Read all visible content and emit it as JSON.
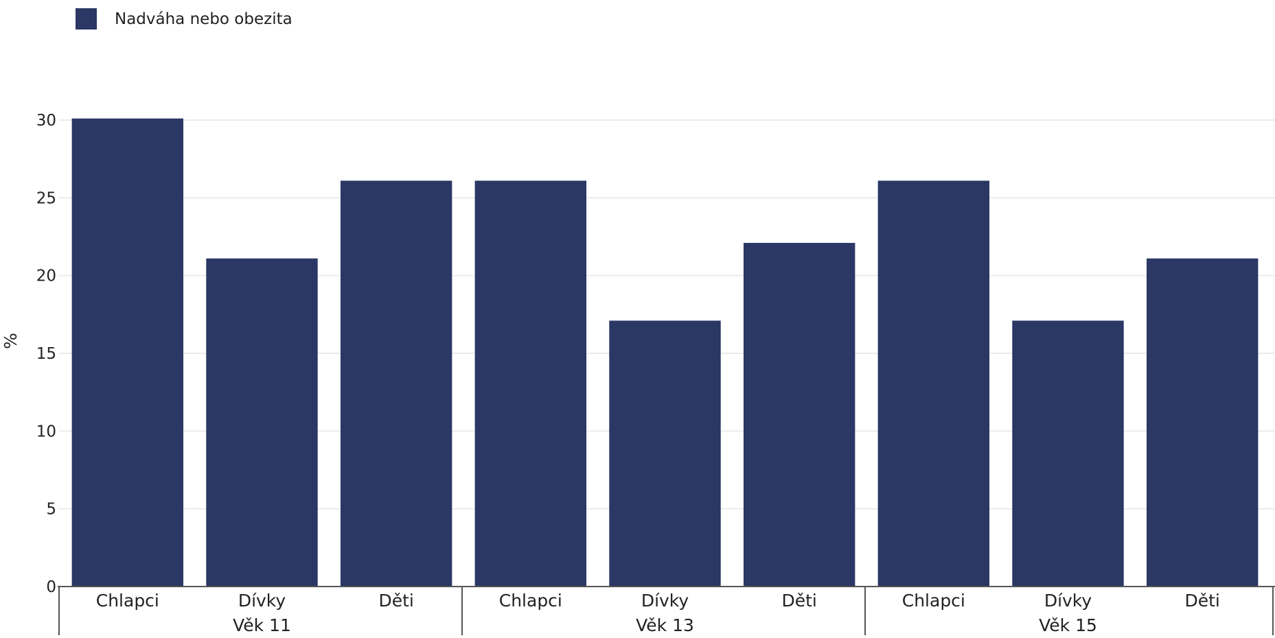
{
  "chart_data": {
    "type": "bar",
    "legend": [
      {
        "name": "Nadváha nebo obezita",
        "color": "#2b3764"
      }
    ],
    "ylabel": "%",
    "ylim": [
      0,
      30
    ],
    "yticks": [
      0,
      5,
      10,
      15,
      20,
      25,
      30
    ],
    "grid": true,
    "legend_position": "top-left",
    "groups": [
      {
        "label": "Věk 11",
        "categories": [
          "Chlapci",
          "Dívky",
          "Děti"
        ],
        "values": [
          30.1,
          21.1,
          26.1
        ]
      },
      {
        "label": "Věk 13",
        "categories": [
          "Chlapci",
          "Dívky",
          "Děti"
        ],
        "values": [
          26.1,
          17.1,
          22.1
        ]
      },
      {
        "label": "Věk 15",
        "categories": [
          "Chlapci",
          "Dívky",
          "Děti"
        ],
        "values": [
          26.1,
          17.1,
          21.1
        ]
      }
    ]
  }
}
